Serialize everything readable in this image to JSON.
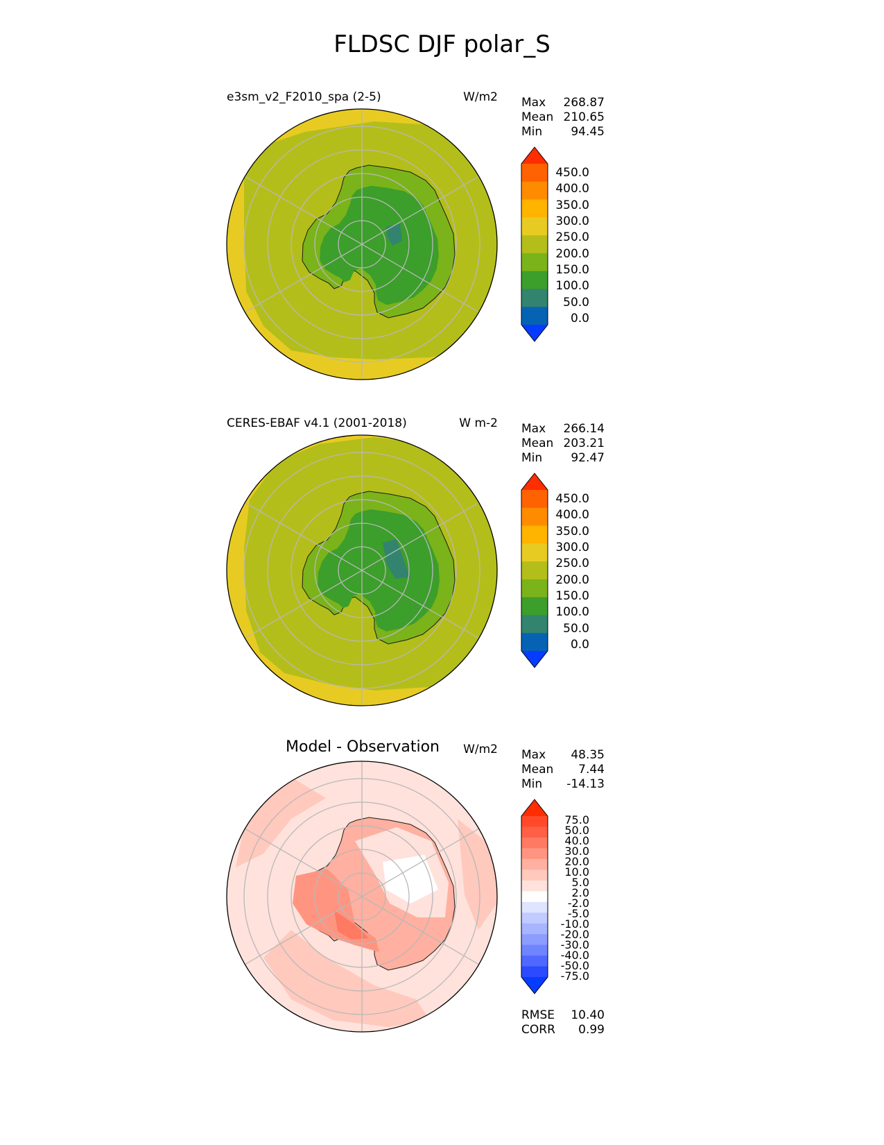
{
  "title": "FLDSC DJF polar_S",
  "chart_data": [
    {
      "type": "heatmap",
      "projection": "south polar stereographic",
      "title": "e3sm_v2_F2010_spa (2-5)",
      "units": "W/m2",
      "stats": {
        "Max": "268.87",
        "Mean": "210.65",
        "Min": "94.45"
      },
      "colorbar_ticks": [
        "450.0",
        "400.0",
        "350.0",
        "300.0",
        "250.0",
        "200.0",
        "150.0",
        "100.0",
        "50.0",
        "0.0"
      ],
      "colorbar_colors": [
        "#ff2d00",
        "#ff6200",
        "#ff8c00",
        "#ffb400",
        "#e8cb22",
        "#b4be1a",
        "#7bb31a",
        "#3c9e2b",
        "#33846e",
        "#0663b4",
        "#063cff"
      ],
      "field": {
        "continent_interior": "100-150",
        "continent_edge": "150-200",
        "ocean": "200-250",
        "outer_ocean": "250-300",
        "min_patch": "<100"
      }
    },
    {
      "type": "heatmap",
      "projection": "south polar stereographic",
      "title": "CERES-EBAF v4.1 (2001-2018)",
      "units": "W m-2",
      "stats": {
        "Max": "266.14",
        "Mean": "203.21",
        "Min": "92.47"
      },
      "colorbar_ticks": [
        "450.0",
        "400.0",
        "350.0",
        "300.0",
        "250.0",
        "200.0",
        "150.0",
        "100.0",
        "50.0",
        "0.0"
      ],
      "colorbar_colors": [
        "#ff2d00",
        "#ff6200",
        "#ff8c00",
        "#ffb400",
        "#e8cb22",
        "#b4be1a",
        "#7bb31a",
        "#3c9e2b",
        "#33846e",
        "#0663b4",
        "#063cff"
      ],
      "field": {
        "continent_interior": "100-150",
        "continent_edge": "150-200",
        "ocean": "200-250",
        "outer_ocean": "250-300",
        "min_patch": "<100"
      }
    },
    {
      "type": "heatmap",
      "projection": "south polar stereographic",
      "title": "Model - Observation",
      "units": "W/m2",
      "stats": {
        "Max": "48.35",
        "Mean": "7.44",
        "Min": "-14.13"
      },
      "colorbar_ticks": [
        "75.0",
        "50.0",
        "40.0",
        "30.0",
        "20.0",
        "10.0",
        "5.0",
        "2.0",
        "-2.0",
        "-5.0",
        "-10.0",
        "-20.0",
        "-30.0",
        "-40.0",
        "-50.0",
        "-75.0"
      ],
      "colorbar_colors": [
        "#ff2d00",
        "#ff4a2a",
        "#ff5f45",
        "#ff7a63",
        "#ff9580",
        "#ffb0a0",
        "#ffc9bd",
        "#ffe2db",
        "#ffffff",
        "#dfe4ff",
        "#c2cbff",
        "#a7b4ff",
        "#8c9dff",
        "#6f84ff",
        "#5068ff",
        "#2c4aff",
        "#063cff"
      ],
      "footer": {
        "RMSE": "10.40",
        "CORR": "0.99"
      }
    }
  ]
}
